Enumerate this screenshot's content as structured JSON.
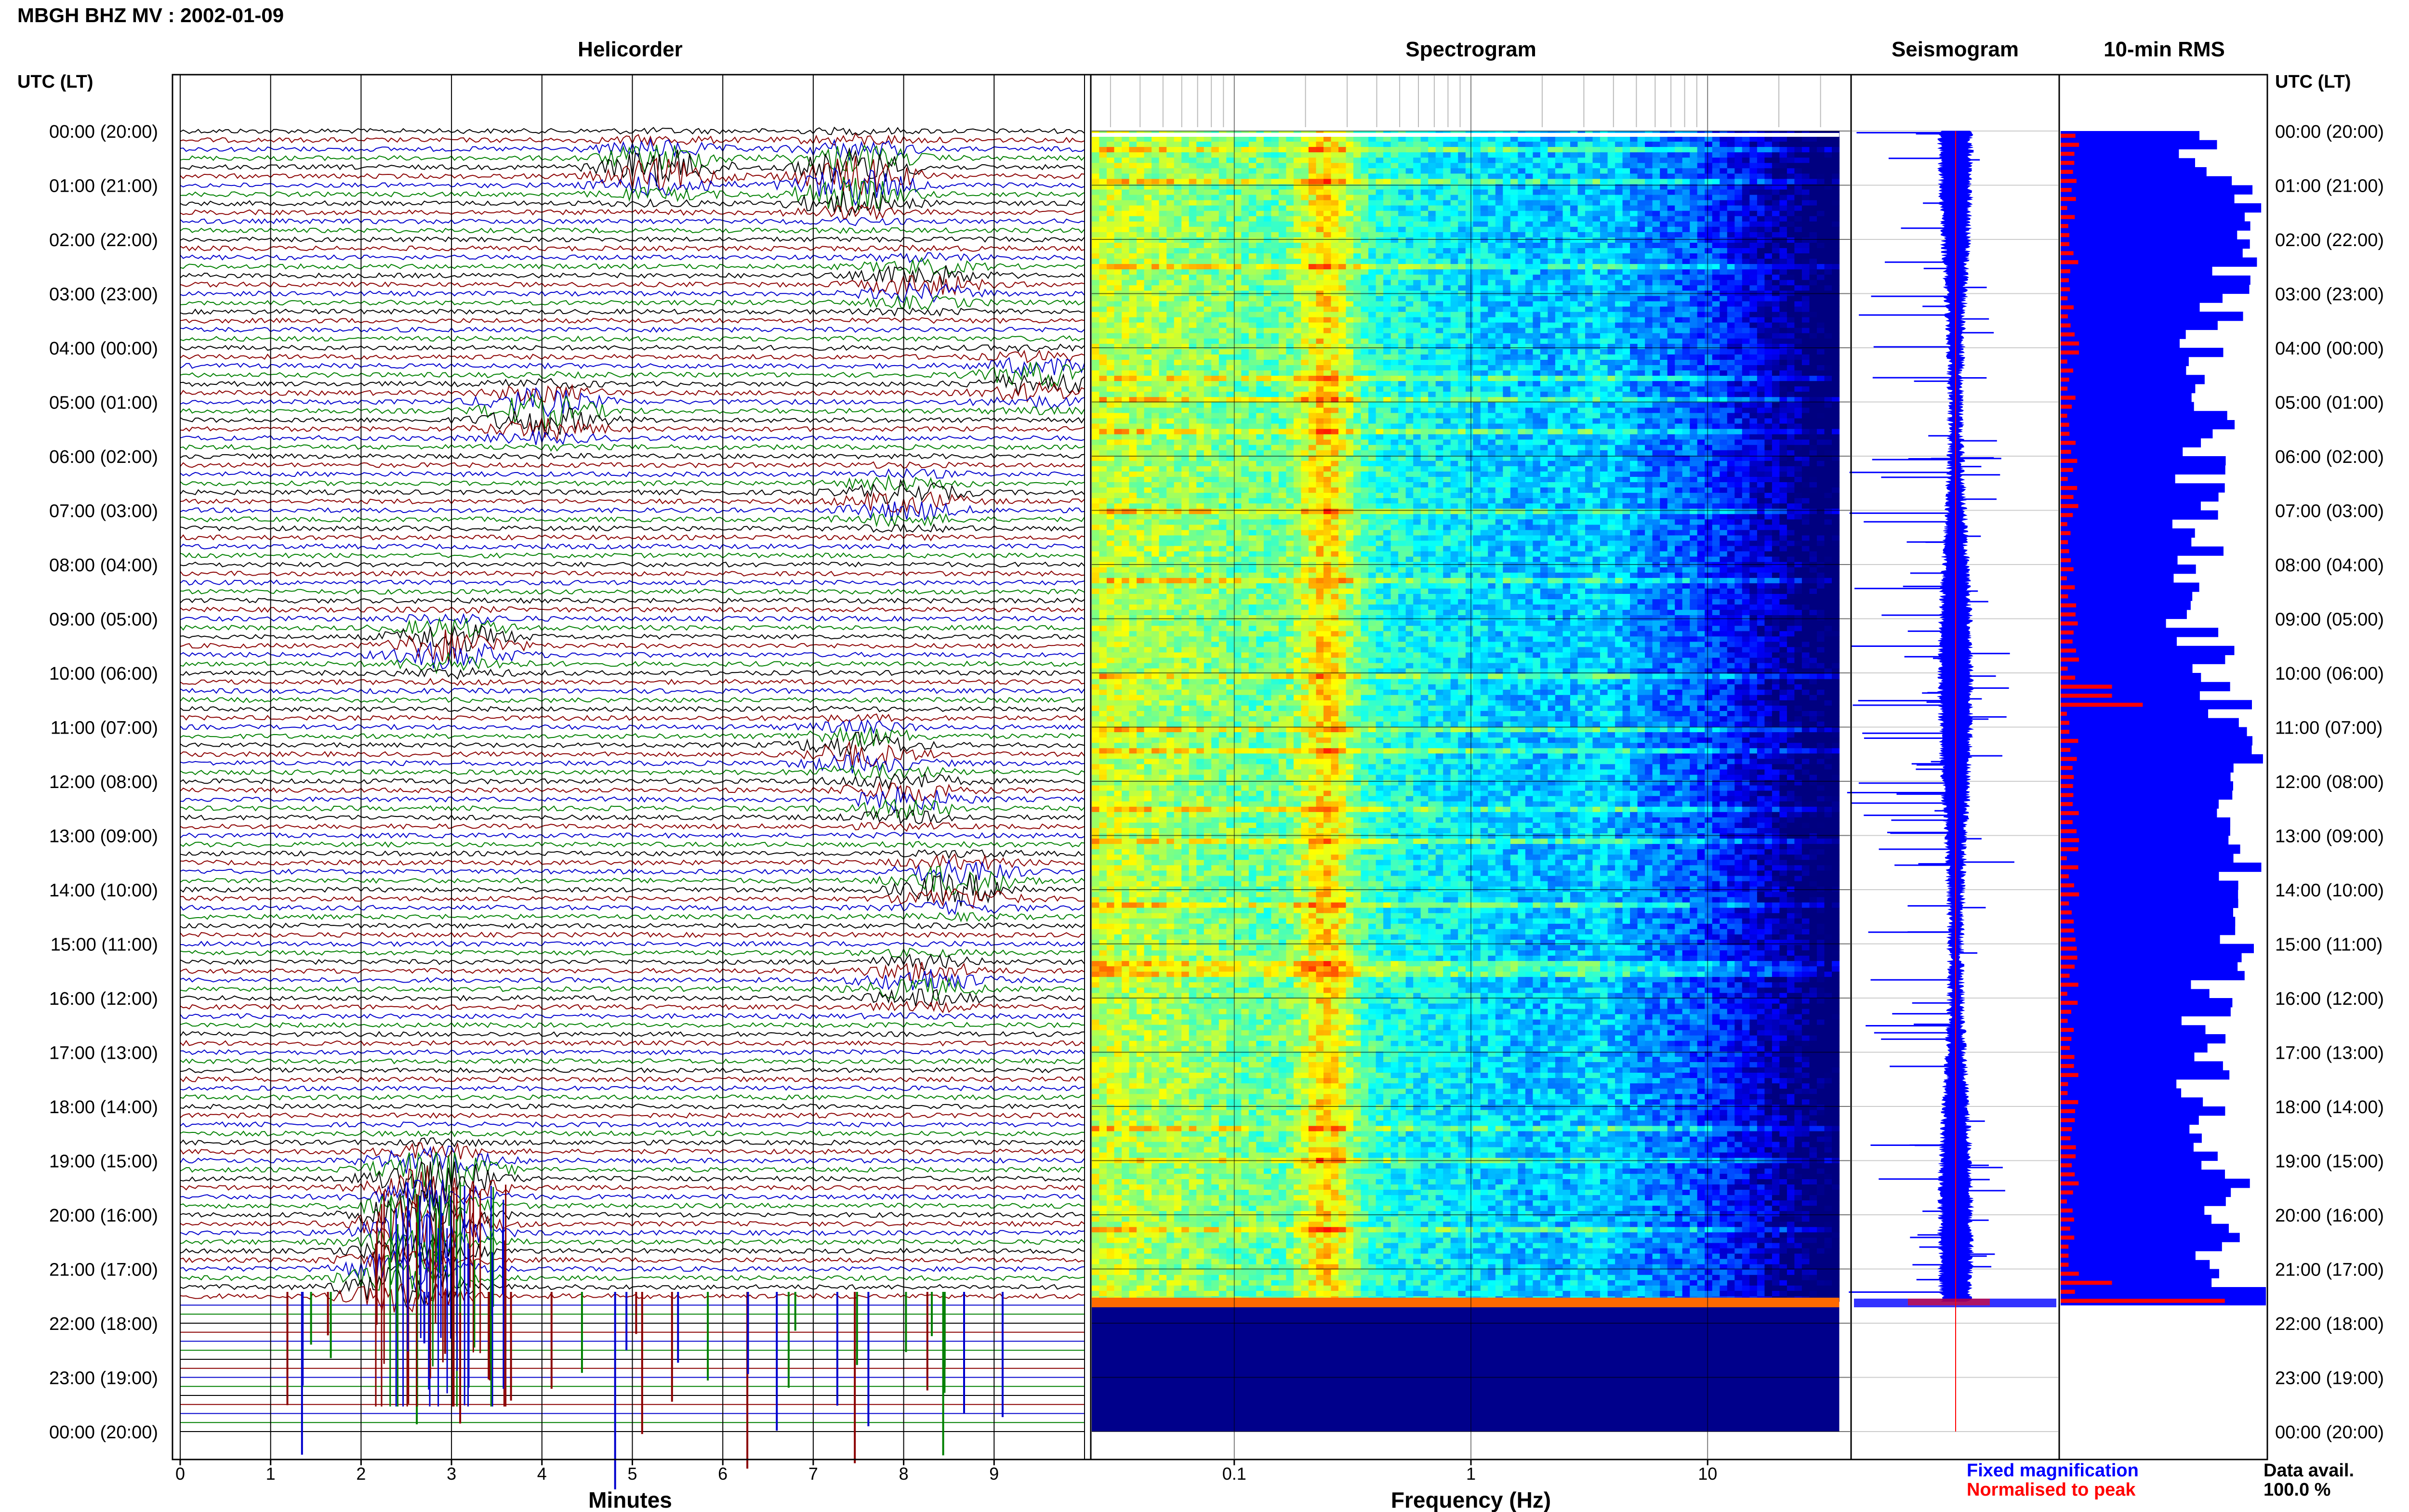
{
  "header": {
    "station_title": "MBGH BHZ MV : 2002-01-09",
    "utc_lt_label": "UTC (LT)"
  },
  "panels": {
    "helicorder": "Helicorder",
    "spectrogram": "Spectrogram",
    "seismogram": "Seismogram",
    "rms": "10-min RMS"
  },
  "axes": {
    "minutes_label": "Minutes",
    "frequency_label": "Frequency (Hz)",
    "minute_ticks": [
      "0",
      "1",
      "2",
      "3",
      "4",
      "5",
      "6",
      "7",
      "8",
      "9"
    ],
    "freq_ticks": [
      "0.1",
      "1",
      "10"
    ]
  },
  "time_labels": [
    "00:00 (20:00)",
    "01:00 (21:00)",
    "02:00 (22:00)",
    "03:00 (23:00)",
    "04:00 (00:00)",
    "05:00 (01:00)",
    "06:00 (02:00)",
    "07:00 (03:00)",
    "08:00 (04:00)",
    "09:00 (05:00)",
    "10:00 (06:00)",
    "11:00 (07:00)",
    "12:00 (08:00)",
    "13:00 (09:00)",
    "14:00 (10:00)",
    "15:00 (11:00)",
    "16:00 (12:00)",
    "17:00 (13:00)",
    "18:00 (14:00)",
    "19:00 (15:00)",
    "20:00 (16:00)",
    "21:00 (17:00)",
    "22:00 (18:00)",
    "23:00 (19:00)",
    "00:00 (20:00)"
  ],
  "legend": {
    "fixed_label": "Fixed magnification",
    "normalised_label": "Normalised to peak",
    "fixed_color": "#0000ff",
    "normalised_color": "#ff0000"
  },
  "data_availability": {
    "label": "Data avail.",
    "value": "100.0 %"
  },
  "colors": {
    "trace_cycle": [
      "#000000",
      "#8b0000",
      "#0000cd",
      "#008000"
    ],
    "spectro_background": "#00008b"
  },
  "chart_data": {
    "type": "heatmap",
    "data_end_hour_utc": 21.6,
    "helicorder": {
      "type": "line",
      "x_range_minutes": [
        0,
        10
      ],
      "y_range_hours": [
        0,
        24
      ],
      "lines_per_hour": 6,
      "events": [
        {
          "hour": 0.7,
          "minute": 5.3,
          "amp": 2.2
        },
        {
          "hour": 0.6,
          "minute": 7.5,
          "amp": 1.6
        },
        {
          "hour": 1.1,
          "minute": 7.4,
          "amp": 1.8
        },
        {
          "hour": 2.8,
          "minute": 8.2,
          "amp": 1.4
        },
        {
          "hour": 4.6,
          "minute": 9.5,
          "amp": 1.5
        },
        {
          "hour": 5.2,
          "minute": 4.0,
          "amp": 2.0
        },
        {
          "hour": 6.8,
          "minute": 8.0,
          "amp": 1.4
        },
        {
          "hour": 9.5,
          "minute": 3.0,
          "amp": 2.0
        },
        {
          "hour": 11.4,
          "minute": 7.5,
          "amp": 1.5
        },
        {
          "hour": 12.3,
          "minute": 8.0,
          "amp": 1.4
        },
        {
          "hour": 13.9,
          "minute": 8.6,
          "amp": 2.0
        },
        {
          "hour": 15.7,
          "minute": 8.2,
          "amp": 1.5
        },
        {
          "hour": 19.3,
          "minute": 2.8,
          "amp": 3.0
        },
        {
          "hour": 20.2,
          "minute": 2.7,
          "amp": 3.8
        },
        {
          "hour": 21.2,
          "minute": 2.5,
          "amp": 3.2
        }
      ]
    },
    "spectrogram": {
      "type": "heatmap",
      "x_scale": "log",
      "x_range_hz": [
        0.025,
        40
      ],
      "y_range_hours": [
        0,
        24
      ],
      "peak_band_hz": [
        0.2,
        0.3
      ],
      "secondary_band_hz": [
        2.5,
        5
      ]
    },
    "seismogram": {
      "type": "line",
      "y_range_hours": [
        0,
        24
      ]
    },
    "rms": {
      "type": "bar",
      "bin_minutes": 10,
      "y_range_hours": [
        0,
        24
      ],
      "fixed_profile": [
        {
          "hour": 0.0,
          "value": 0.66
        },
        {
          "hour": 1.0,
          "value": 0.82
        },
        {
          "hour": 2.0,
          "value": 0.88
        },
        {
          "hour": 3.0,
          "value": 0.8
        },
        {
          "hour": 4.0,
          "value": 0.7
        },
        {
          "hour": 5.0,
          "value": 0.75
        },
        {
          "hour": 6.0,
          "value": 0.7
        },
        {
          "hour": 7.0,
          "value": 0.68
        },
        {
          "hour": 8.0,
          "value": 0.66
        },
        {
          "hour": 9.0,
          "value": 0.62
        },
        {
          "hour": 10.0,
          "value": 0.8
        },
        {
          "hour": 11.0,
          "value": 0.82
        },
        {
          "hour": 12.0,
          "value": 0.88
        },
        {
          "hour": 13.0,
          "value": 0.92
        },
        {
          "hour": 14.0,
          "value": 0.9
        },
        {
          "hour": 15.0,
          "value": 0.82
        },
        {
          "hour": 16.0,
          "value": 0.7
        },
        {
          "hour": 17.0,
          "value": 0.68
        },
        {
          "hour": 18.0,
          "value": 0.72
        },
        {
          "hour": 19.0,
          "value": 0.8
        },
        {
          "hour": 20.0,
          "value": 0.75
        },
        {
          "hour": 21.0,
          "value": 0.82
        },
        {
          "hour": 21.6,
          "value": 1.0
        }
      ],
      "normalised_typical": 0.06,
      "normalised_spikes": [
        {
          "hour": 10.25,
          "value": 0.25
        },
        {
          "hour": 10.55,
          "value": 0.4
        },
        {
          "hour": 21.1,
          "value": 0.25
        },
        {
          "hour": 21.45,
          "value": 0.78
        },
        {
          "hour": 21.55,
          "value": 0.8
        }
      ]
    }
  }
}
